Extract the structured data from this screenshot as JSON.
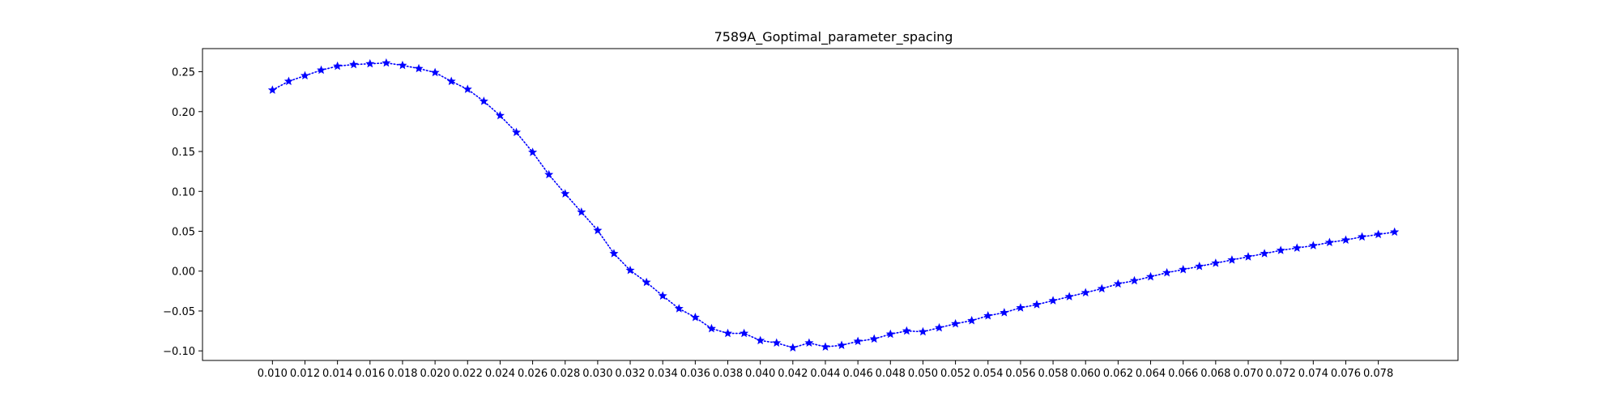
{
  "chart_data": {
    "type": "line",
    "title": "7589A_Goptimal_parameter_spacing",
    "xlabel": "",
    "ylabel": "",
    "xlim": [
      0.0057,
      0.0829
    ],
    "ylim": [
      -0.112,
      0.279
    ],
    "x_ticks": [
      "0.010",
      "0.012",
      "0.014",
      "0.016",
      "0.018",
      "0.020",
      "0.022",
      "0.024",
      "0.026",
      "0.028",
      "0.030",
      "0.032",
      "0.034",
      "0.036",
      "0.038",
      "0.040",
      "0.042",
      "0.044",
      "0.046",
      "0.048",
      "0.050",
      "0.052",
      "0.054",
      "0.056",
      "0.058",
      "0.060",
      "0.062",
      "0.064",
      "0.066",
      "0.068",
      "0.070",
      "0.072",
      "0.074",
      "0.076",
      "0.078"
    ],
    "y_ticks": [
      "0.25",
      "0.20",
      "0.15",
      "0.10",
      "0.05",
      "0.00",
      "−0.05",
      "−0.10"
    ],
    "y_tick_values": [
      0.25,
      0.2,
      0.15,
      0.1,
      0.05,
      0.0,
      -0.05,
      -0.1
    ],
    "grid": false,
    "series": [
      {
        "color": "#0000ff",
        "line_style": "dotted",
        "marker": "star",
        "x": [
          0.01,
          0.011,
          0.012,
          0.013,
          0.014,
          0.015,
          0.016,
          0.017,
          0.018,
          0.019,
          0.02,
          0.021,
          0.022,
          0.023,
          0.024,
          0.025,
          0.026,
          0.027,
          0.028,
          0.029,
          0.03,
          0.031,
          0.032,
          0.033,
          0.034,
          0.035,
          0.036,
          0.037,
          0.038,
          0.039,
          0.04,
          0.041,
          0.042,
          0.043,
          0.044,
          0.045,
          0.046,
          0.047,
          0.048,
          0.049,
          0.05,
          0.051,
          0.052,
          0.053,
          0.054,
          0.055,
          0.056,
          0.057,
          0.058,
          0.059,
          0.06,
          0.061,
          0.062,
          0.063,
          0.064,
          0.065,
          0.066,
          0.067,
          0.068,
          0.069,
          0.07,
          0.071,
          0.072,
          0.073,
          0.074,
          0.075,
          0.076,
          0.077,
          0.078,
          0.079
        ],
        "y": [
          0.227,
          0.238,
          0.245,
          0.252,
          0.257,
          0.259,
          0.26,
          0.261,
          0.258,
          0.254,
          0.249,
          0.238,
          0.228,
          0.213,
          0.195,
          0.174,
          0.149,
          0.121,
          0.097,
          0.074,
          0.051,
          0.022,
          0.001,
          -0.014,
          -0.031,
          -0.047,
          -0.058,
          -0.072,
          -0.078,
          -0.078,
          -0.087,
          -0.09,
          -0.096,
          -0.09,
          -0.095,
          -0.093,
          -0.088,
          -0.085,
          -0.079,
          -0.075,
          -0.076,
          -0.071,
          -0.066,
          -0.062,
          -0.056,
          -0.052,
          -0.046,
          -0.042,
          -0.037,
          -0.032,
          -0.027,
          -0.022,
          -0.016,
          -0.012,
          -0.007,
          -0.002,
          0.002,
          0.006,
          0.01,
          0.014,
          0.018,
          0.022,
          0.026,
          0.029,
          0.032,
          0.036,
          0.039,
          0.043,
          0.046,
          0.049
        ]
      }
    ]
  }
}
